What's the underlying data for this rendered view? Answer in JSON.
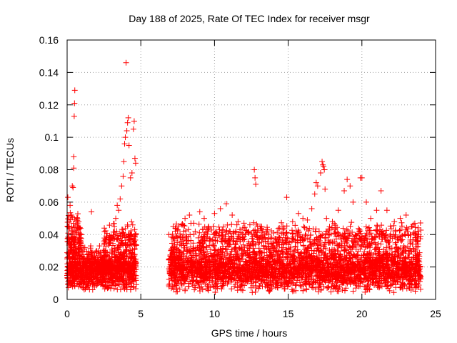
{
  "chart_data": {
    "type": "scatter",
    "title": "Day 188 of 2025, Rate Of TEC Index for receiver msgr",
    "xlabel": "GPS time / hours",
    "ylabel": "ROTI / TECUs",
    "xlim": [
      0,
      25
    ],
    "ylim": [
      0,
      0.16
    ],
    "xticks": [
      0,
      5,
      10,
      15,
      20,
      25
    ],
    "xtick_labels": [
      "0",
      "5",
      "10",
      "15",
      "20",
      "25"
    ],
    "yticks": [
      0,
      0.02,
      0.04,
      0.06,
      0.08,
      0.1,
      0.12,
      0.14,
      0.16
    ],
    "ytick_labels": [
      "0",
      "0.02",
      "0.04",
      "0.06",
      "0.08",
      "0.1",
      "0.12",
      "0.14",
      "0.16"
    ],
    "grid": true,
    "marker": "+",
    "color": "#ff0000",
    "series": [
      {
        "name": "ROTI",
        "points": [
          [
            0.05,
            0.063
          ],
          [
            0.1,
            0.045
          ],
          [
            0.2,
            0.058
          ],
          [
            0.3,
            0.052
          ],
          [
            0.35,
            0.07
          ],
          [
            0.4,
            0.069
          ],
          [
            0.45,
            0.088
          ],
          [
            0.45,
            0.081
          ],
          [
            0.48,
            0.113
          ],
          [
            0.5,
            0.121
          ],
          [
            0.52,
            0.129
          ],
          [
            0.6,
            0.046
          ],
          [
            0.7,
            0.044
          ],
          [
            0.8,
            0.041
          ],
          [
            0.9,
            0.038
          ],
          [
            1.0,
            0.03
          ],
          [
            1.2,
            0.032
          ],
          [
            1.4,
            0.028
          ],
          [
            1.6,
            0.033
          ],
          [
            1.65,
            0.054
          ],
          [
            2.0,
            0.03
          ],
          [
            2.2,
            0.033
          ],
          [
            2.5,
            0.034
          ],
          [
            2.8,
            0.038
          ],
          [
            3.0,
            0.039
          ],
          [
            3.2,
            0.045
          ],
          [
            3.3,
            0.05
          ],
          [
            3.4,
            0.058
          ],
          [
            3.5,
            0.055
          ],
          [
            3.6,
            0.062
          ],
          [
            3.7,
            0.07
          ],
          [
            3.8,
            0.076
          ],
          [
            3.85,
            0.085
          ],
          [
            3.9,
            0.096
          ],
          [
            3.95,
            0.1
          ],
          [
            4.0,
            0.146
          ],
          [
            4.05,
            0.104
          ],
          [
            4.1,
            0.109
          ],
          [
            4.15,
            0.112
          ],
          [
            4.2,
            0.095
          ],
          [
            4.3,
            0.075
          ],
          [
            4.4,
            0.078
          ],
          [
            4.5,
            0.105
          ],
          [
            4.55,
            0.11
          ],
          [
            4.6,
            0.087
          ],
          [
            4.65,
            0.084
          ],
          [
            6.9,
            0.04
          ],
          [
            7.2,
            0.038
          ],
          [
            7.5,
            0.043
          ],
          [
            7.8,
            0.046
          ],
          [
            8.0,
            0.05
          ],
          [
            8.3,
            0.052
          ],
          [
            8.6,
            0.047
          ],
          [
            9.0,
            0.054
          ],
          [
            9.3,
            0.05
          ],
          [
            9.6,
            0.045
          ],
          [
            10.0,
            0.053
          ],
          [
            10.4,
            0.056
          ],
          [
            10.8,
            0.059
          ],
          [
            11.2,
            0.052
          ],
          [
            11.6,
            0.048
          ],
          [
            12.0,
            0.047
          ],
          [
            12.4,
            0.046
          ],
          [
            12.7,
            0.08
          ],
          [
            12.75,
            0.075
          ],
          [
            12.8,
            0.071
          ],
          [
            13.2,
            0.045
          ],
          [
            13.6,
            0.043
          ],
          [
            14.0,
            0.041
          ],
          [
            14.4,
            0.044
          ],
          [
            14.9,
            0.063
          ],
          [
            15.3,
            0.048
          ],
          [
            15.7,
            0.053
          ],
          [
            16.0,
            0.05
          ],
          [
            16.3,
            0.049
          ],
          [
            16.6,
            0.056
          ],
          [
            16.8,
            0.065
          ],
          [
            16.9,
            0.072
          ],
          [
            17.0,
            0.07
          ],
          [
            17.2,
            0.078
          ],
          [
            17.3,
            0.085
          ],
          [
            17.35,
            0.083
          ],
          [
            17.4,
            0.082
          ],
          [
            17.45,
            0.08
          ],
          [
            17.5,
            0.068
          ],
          [
            17.6,
            0.05
          ],
          [
            18.0,
            0.048
          ],
          [
            18.4,
            0.055
          ],
          [
            18.8,
            0.067
          ],
          [
            19.0,
            0.074
          ],
          [
            19.2,
            0.07
          ],
          [
            19.4,
            0.06
          ],
          [
            19.9,
            0.075
          ],
          [
            20.0,
            0.075
          ],
          [
            20.3,
            0.06
          ],
          [
            20.6,
            0.05
          ],
          [
            21.0,
            0.055
          ],
          [
            21.3,
            0.067
          ],
          [
            21.7,
            0.055
          ],
          [
            22.2,
            0.048
          ],
          [
            22.6,
            0.05
          ],
          [
            23.0,
            0.052
          ],
          [
            23.4,
            0.045
          ],
          [
            23.8,
            0.042
          ]
        ]
      }
    ]
  }
}
